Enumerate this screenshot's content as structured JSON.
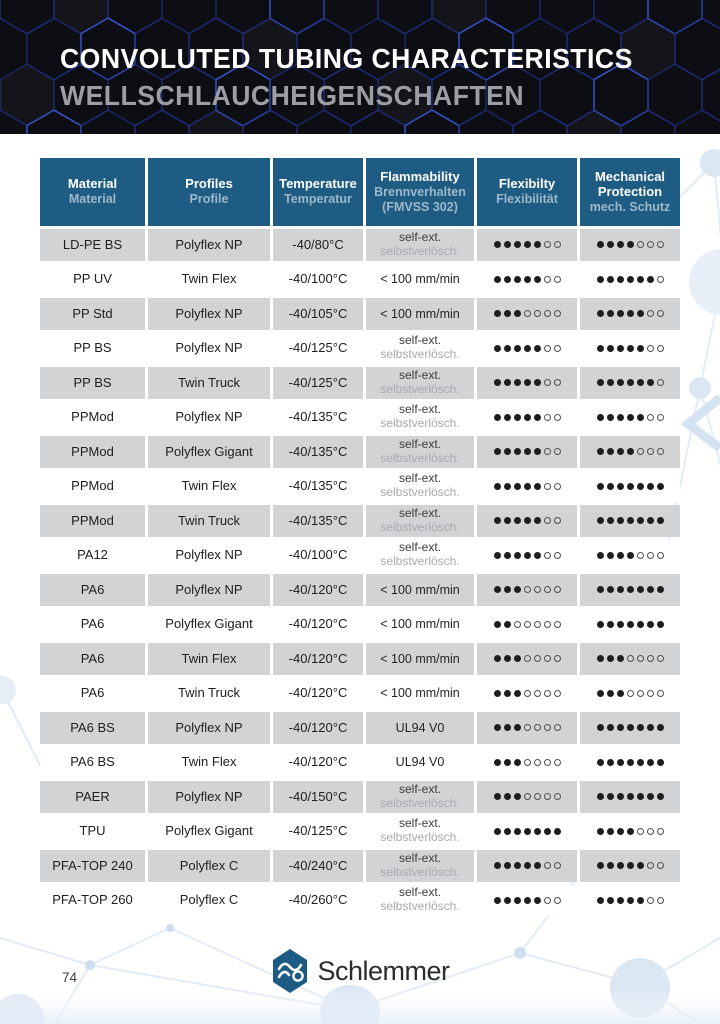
{
  "banner": {
    "title": "CONVOLUTED TUBING CHARACTERISTICS",
    "subtitle": "WELLSCHLAUCHEIGENSCHAFTEN"
  },
  "colors": {
    "banner_bg": "#0c0e13",
    "hexagon_line": "#2c44b0",
    "table_header_bg": "#1e5c84",
    "table_header_text": "#ffffff",
    "table_header_subtext": "#9db8c9",
    "row_alt_bg": "#d2d3d5",
    "dot_filled": "#1e1e1c",
    "decoration_blue": "#dfe8f4"
  },
  "table": {
    "header": {
      "material_en": "Material",
      "material_de": "Material",
      "profiles_en": "Profiles",
      "profiles_de": "Profile",
      "temperature_en": "Temperature",
      "temperature_de": "Temperatur",
      "flammability_en": "Flammability",
      "flammability_de": "Brennverhalten",
      "flammability_de2": "(FMVSS 302)",
      "flexibility_en": "Flexibilty",
      "flexibility_de": "Flexibilität",
      "protection_en": "Mechanical Protection",
      "protection_de": "mech. Schutz"
    },
    "dots_total": 7,
    "rows": [
      {
        "material": "LD-PE BS",
        "profile": "Polyflex NP",
        "temperature": "-40/80°C",
        "flam1": "self-ext.",
        "flam2": "selbstverlösch.",
        "flexibility": 5,
        "protection": 4
      },
      {
        "material": "PP UV",
        "profile": "Twin Flex",
        "temperature": "-40/100°C",
        "flam1": "< 100 mm/min",
        "flam2": "",
        "flexibility": 5,
        "protection": 6
      },
      {
        "material": "PP Std",
        "profile": "Polyflex NP",
        "temperature": "-40/105°C",
        "flam1": "< 100 mm/min",
        "flam2": "",
        "flexibility": 3,
        "protection": 5
      },
      {
        "material": "PP BS",
        "profile": "Polyflex NP",
        "temperature": "-40/125°C",
        "flam1": "self-ext.",
        "flam2": "selbstverlösch.",
        "flexibility": 5,
        "protection": 5
      },
      {
        "material": "PP BS",
        "profile": "Twin Truck",
        "temperature": "-40/125°C",
        "flam1": "self-ext.",
        "flam2": "selbstverlösch.",
        "flexibility": 5,
        "protection": 6
      },
      {
        "material": "PPMod",
        "profile": "Polyflex NP",
        "temperature": "-40/135°C",
        "flam1": "self-ext.",
        "flam2": "selbstverlösch.",
        "flexibility": 5,
        "protection": 5
      },
      {
        "material": "PPMod",
        "profile": "Polyflex Gigant",
        "temperature": "-40/135°C",
        "flam1": "self-ext.",
        "flam2": "selbstverlösch.",
        "flexibility": 5,
        "protection": 4
      },
      {
        "material": "PPMod",
        "profile": "Twin Flex",
        "temperature": "-40/135°C",
        "flam1": "self-ext.",
        "flam2": "selbstverlösch.",
        "flexibility": 5,
        "protection": 7
      },
      {
        "material": "PPMod",
        "profile": "Twin Truck",
        "temperature": "-40/135°C",
        "flam1": "self-ext.",
        "flam2": "selbstverlösch.",
        "flexibility": 5,
        "protection": 7
      },
      {
        "material": "PA12",
        "profile": "Polyflex NP",
        "temperature": "-40/100°C",
        "flam1": "self-ext.",
        "flam2": "selbstverlösch.",
        "flexibility": 5,
        "protection": 4
      },
      {
        "material": "PA6",
        "profile": "Polyflex NP",
        "temperature": "-40/120°C",
        "flam1": "< 100 mm/min",
        "flam2": "",
        "flexibility": 3,
        "protection": 7
      },
      {
        "material": "PA6",
        "profile": "Polyflex Gigant",
        "temperature": "-40/120°C",
        "flam1": "< 100 mm/min",
        "flam2": "",
        "flexibility": 2,
        "protection": 7
      },
      {
        "material": "PA6",
        "profile": "Twin Flex",
        "temperature": "-40/120°C",
        "flam1": "< 100 mm/min",
        "flam2": "",
        "flexibility": 3,
        "protection": 3
      },
      {
        "material": "PA6",
        "profile": "Twin Truck",
        "temperature": "-40/120°C",
        "flam1": "< 100 mm/min",
        "flam2": "",
        "flexibility": 3,
        "protection": 3
      },
      {
        "material": "PA6 BS",
        "profile": "Polyflex NP",
        "temperature": "-40/120°C",
        "flam1": "UL94 V0",
        "flam2": "",
        "flexibility": 3,
        "protection": 7
      },
      {
        "material": "PA6 BS",
        "profile": "Twin Flex",
        "temperature": "-40/120°C",
        "flam1": "UL94 V0",
        "flam2": "",
        "flexibility": 3,
        "protection": 7
      },
      {
        "material": "PAER",
        "profile": "Polyflex NP",
        "temperature": "-40/150°C",
        "flam1": "self-ext.",
        "flam2": "selbstverlösch.",
        "flexibility": 3,
        "protection": 7
      },
      {
        "material": "TPU",
        "profile": "Polyflex Gigant",
        "temperature": "-40/125°C",
        "flam1": "self-ext.",
        "flam2": "selbstverlösch.",
        "flexibility": 7,
        "protection": 4
      },
      {
        "material": "PFA-TOP 240",
        "profile": "Polyflex C",
        "temperature": "-40/240°C",
        "flam1": "self-ext.",
        "flam2": "selbstverlösch.",
        "flexibility": 5,
        "protection": 5
      },
      {
        "material": "PFA-TOP 260",
        "profile": "Polyflex C",
        "temperature": "-40/260°C",
        "flam1": "self-ext.",
        "flam2": "selbstverlösch.",
        "flexibility": 5,
        "protection": 5
      }
    ]
  },
  "footer": {
    "page_number": "74",
    "logo_text": "Schlemmer"
  }
}
